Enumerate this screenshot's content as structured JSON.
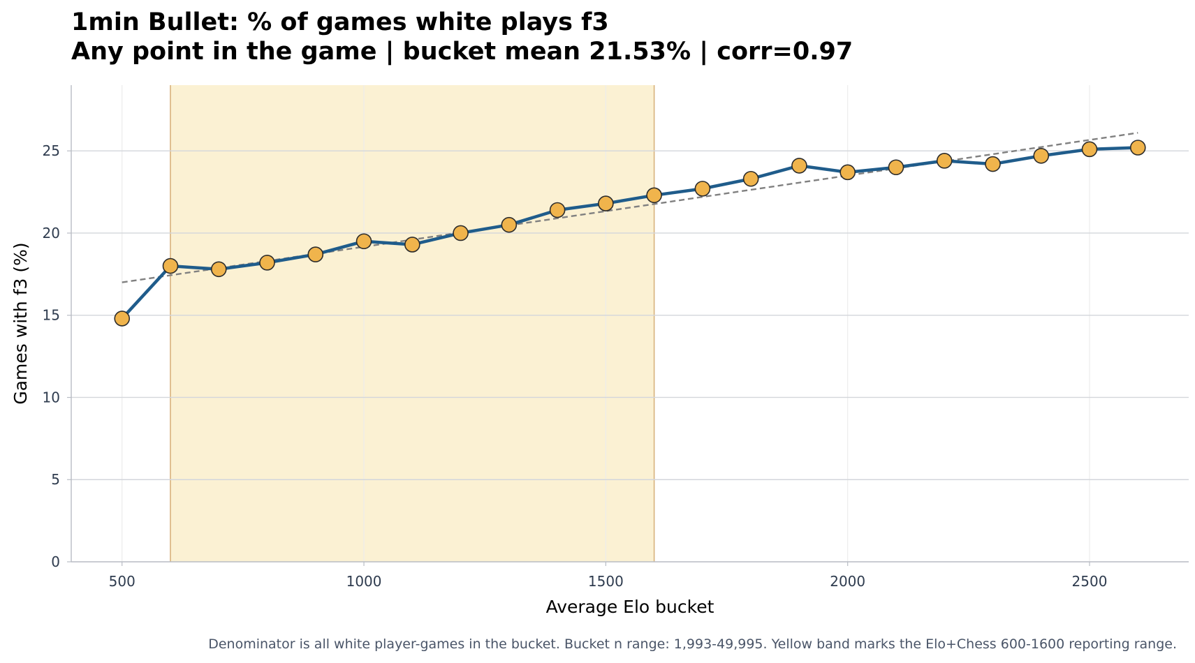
{
  "chart_data": {
    "type": "line",
    "title": "1min Bullet: % of games white plays f3",
    "subtitle": "Any point in the game | bucket mean 21.53% | corr=0.97",
    "xlabel": "Average Elo bucket",
    "ylabel": "Games with f3 (%)",
    "xlim": [
      395,
      2705
    ],
    "ylim": [
      0,
      29
    ],
    "xticks": [
      500,
      1000,
      1500,
      2000,
      2500
    ],
    "yticks": [
      0,
      5,
      10,
      15,
      20,
      25
    ],
    "grid": true,
    "legend": "none",
    "band": {
      "x0": 600,
      "x1": 1600,
      "color": "#fbf1d3",
      "edge": "#d8b27c"
    },
    "trendline": {
      "x0": 500,
      "y0": 17.0,
      "x1": 2600,
      "y1": 26.1,
      "color": "#808080"
    },
    "series": [
      {
        "color": "#1f5c8b",
        "marker_color": "#f0b44c",
        "x": [
          500,
          600,
          700,
          800,
          900,
          1000,
          1100,
          1200,
          1300,
          1400,
          1500,
          1600,
          1700,
          1800,
          1900,
          2000,
          2100,
          2200,
          2300,
          2400,
          2500,
          2600
        ],
        "y": [
          14.8,
          18.0,
          17.8,
          18.2,
          18.7,
          19.5,
          19.3,
          20.0,
          20.5,
          21.4,
          21.8,
          22.3,
          22.7,
          23.3,
          24.1,
          23.7,
          24.0,
          24.4,
          24.2,
          24.7,
          25.1,
          25.2
        ]
      }
    ],
    "footnote": "Denominator is all white player-games in the bucket. Bucket n range: 1,993-49,995. Yellow band marks the Elo+Chess 600-1600 reporting range."
  }
}
